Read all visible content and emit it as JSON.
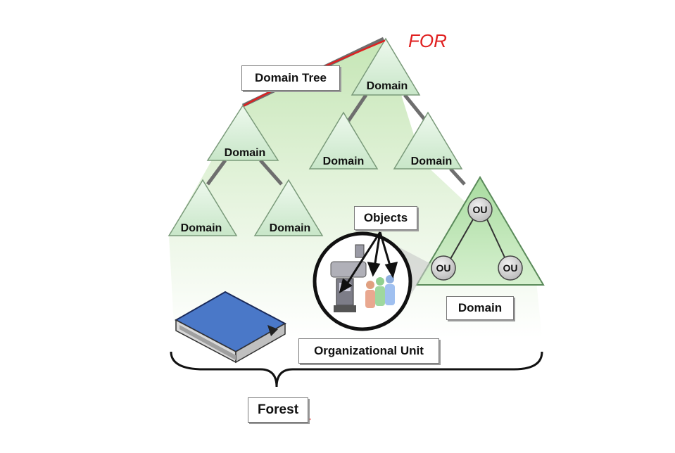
{
  "diagram": {
    "labels": {
      "domain_tree": "Domain Tree",
      "objects": "Objects",
      "organizational_unit": "Organizational Unit",
      "ou_domain": "Domain",
      "forest": "Forest",
      "annotation": "FOR"
    },
    "domains": [
      "Domain",
      "Domain",
      "Domain",
      "Domain",
      "Domain",
      "Domain"
    ],
    "ou_nodes": [
      "OU",
      "OU",
      "OU"
    ],
    "colors": {
      "triangle_fill": "#d8f0d8",
      "triangle_stroke": "#7a9a7a",
      "forest_fill": "#cfe9c2",
      "connector": "#6e6e6e",
      "annotation": "#e02020"
    }
  }
}
